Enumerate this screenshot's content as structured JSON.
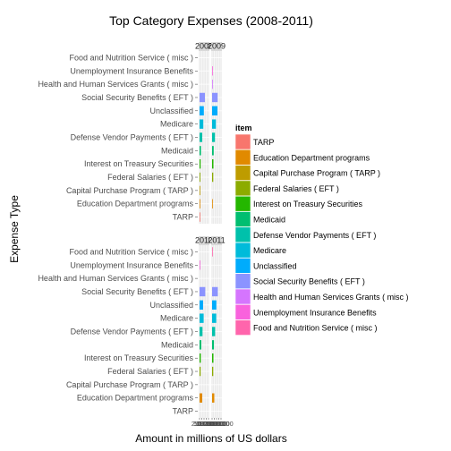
{
  "chart_data": {
    "type": "bar",
    "orientation": "horizontal",
    "faceted": true,
    "title": "Top Category Expenses (2008-2011)",
    "xlabel": "Amount in millions of US dollars",
    "ylabel": "Expense Type",
    "categories": [
      "TARP",
      "Education Department programs",
      "Capital Purchase Program ( TARP )",
      "Federal Salaries ( EFT )",
      "Interest on Treasury Securities",
      "Medicaid",
      "Defense Vendor Payments ( EFT )",
      "Medicare",
      "Unclassified",
      "Social Security Benefits ( EFT )",
      "Health and Human Services Grants ( misc )",
      "Unemployment Insurance Benefits",
      "Food and Nutrition Service ( misc )"
    ],
    "colors": [
      "#F8766D",
      "#E18A00",
      "#BE9C00",
      "#8CAB00",
      "#24B700",
      "#00BE70",
      "#00C1AB",
      "#00BBDA",
      "#00ACFC",
      "#8B93FF",
      "#D575FE",
      "#F962DD",
      "#FF65AC"
    ],
    "legend": {
      "title": "item",
      "position": "right",
      "items": [
        "TARP",
        "Education Department programs",
        "Capital Purchase Program ( TARP )",
        "Federal Salaries ( EFT )",
        "Interest on Treasury Securities",
        "Medicaid",
        "Defense Vendor Payments ( EFT )",
        "Medicare",
        "Unclassified",
        "Social Security Benefits ( EFT )",
        "Health and Human Services Grants ( misc )",
        "Unemployment Insurance Benefits",
        "Food and Nutrition Service ( misc )"
      ]
    },
    "xlim": [
      0,
      1000000
    ],
    "x_tick_labels": [
      "0",
      "250000",
      "500000",
      "750000",
      "1000000"
    ],
    "grid": true,
    "facets": [
      {
        "label": "2008",
        "values": [
          20000,
          30000,
          60000,
          90000,
          120000,
          160000,
          300000,
          420000,
          480000,
          600000,
          0,
          0,
          0
        ]
      },
      {
        "label": "2009",
        "values": [
          0,
          60000,
          0,
          130000,
          150000,
          180000,
          320000,
          430000,
          600000,
          620000,
          30000,
          60000,
          0
        ]
      },
      {
        "label": "2010",
        "values": [
          0,
          300000,
          0,
          120000,
          140000,
          200000,
          330000,
          460000,
          400000,
          640000,
          0,
          60000,
          0
        ]
      },
      {
        "label": "2011",
        "values": [
          0,
          250000,
          0,
          130000,
          150000,
          210000,
          340000,
          470000,
          480000,
          640000,
          0,
          0,
          60000
        ]
      }
    ]
  }
}
